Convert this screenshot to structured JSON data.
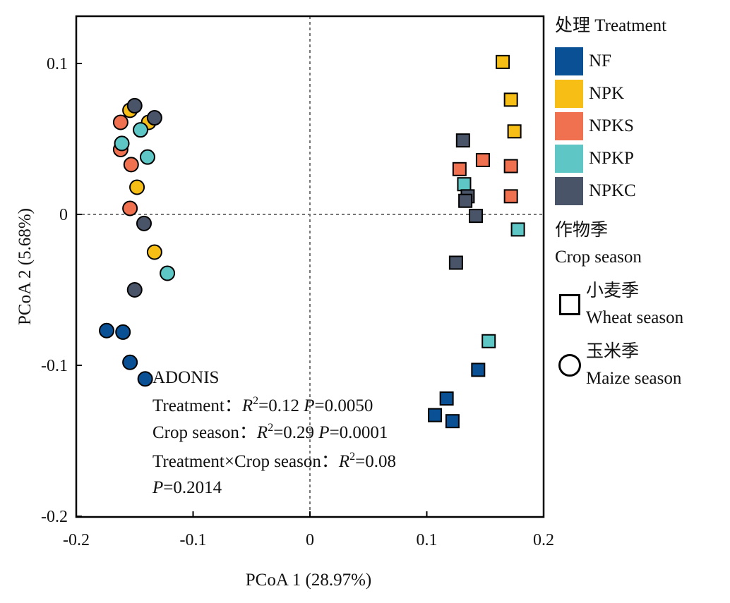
{
  "chart_data": {
    "type": "scatter",
    "xlabel": "PCoA 1 (28.97%)",
    "ylabel": "PCoA 2 (5.68%)",
    "xlim": [
      -0.2,
      0.2
    ],
    "ylim": [
      -0.2,
      0.13
    ],
    "x_ticks": [
      -0.2,
      -0.1,
      0,
      0.1,
      0.2
    ],
    "x_tick_labels": [
      "-0.2",
      "-0.1",
      "0",
      "0.1",
      "0.2"
    ],
    "y_ticks": [
      -0.2,
      -0.1,
      0,
      0.1
    ],
    "y_tick_labels": [
      "-0.2",
      "-0.1",
      "0",
      "0.1"
    ],
    "reference_lines": [
      "x=0 dotted",
      "y=0 dotted"
    ],
    "legend_position": "right",
    "treatments": [
      {
        "name": "NF",
        "color": "#0a5094"
      },
      {
        "name": "NPK",
        "color": "#f7be16"
      },
      {
        "name": "NPKS",
        "color": "#ef7150"
      },
      {
        "name": "NPKP",
        "color": "#5ec6c5"
      },
      {
        "name": "NPKC",
        "color": "#4a5468"
      }
    ],
    "points": [
      {
        "x": 0.165,
        "y": 0.101,
        "treatment": "NPK",
        "season": "wheat"
      },
      {
        "x": 0.172,
        "y": 0.076,
        "treatment": "NPK",
        "season": "wheat"
      },
      {
        "x": 0.175,
        "y": 0.055,
        "treatment": "NPK",
        "season": "wheat"
      },
      {
        "x": 0.131,
        "y": 0.049,
        "treatment": "NPKC",
        "season": "wheat"
      },
      {
        "x": 0.148,
        "y": 0.036,
        "treatment": "NPKS",
        "season": "wheat"
      },
      {
        "x": 0.128,
        "y": 0.03,
        "treatment": "NPKS",
        "season": "wheat"
      },
      {
        "x": 0.172,
        "y": 0.032,
        "treatment": "NPKS",
        "season": "wheat"
      },
      {
        "x": 0.132,
        "y": 0.02,
        "treatment": "NPKP",
        "season": "wheat"
      },
      {
        "x": 0.135,
        "y": 0.012,
        "treatment": "NPKC",
        "season": "wheat"
      },
      {
        "x": 0.172,
        "y": 0.012,
        "treatment": "NPKS",
        "season": "wheat"
      },
      {
        "x": 0.133,
        "y": 0.009,
        "treatment": "NPKC",
        "season": "wheat"
      },
      {
        "x": 0.142,
        "y": -0.001,
        "treatment": "NPKC",
        "season": "wheat"
      },
      {
        "x": 0.178,
        "y": -0.01,
        "treatment": "NPKP",
        "season": "wheat"
      },
      {
        "x": 0.125,
        "y": -0.032,
        "treatment": "NPKC",
        "season": "wheat"
      },
      {
        "x": 0.153,
        "y": -0.084,
        "treatment": "NPKP",
        "season": "wheat"
      },
      {
        "x": 0.144,
        "y": -0.103,
        "treatment": "NF",
        "season": "wheat"
      },
      {
        "x": 0.117,
        "y": -0.122,
        "treatment": "NF",
        "season": "wheat"
      },
      {
        "x": 0.107,
        "y": -0.133,
        "treatment": "NF",
        "season": "wheat"
      },
      {
        "x": 0.122,
        "y": -0.137,
        "treatment": "NF",
        "season": "wheat"
      },
      {
        "x": -0.154,
        "y": 0.069,
        "treatment": "NPK",
        "season": "maize"
      },
      {
        "x": -0.15,
        "y": 0.072,
        "treatment": "NPKC",
        "season": "maize"
      },
      {
        "x": -0.138,
        "y": 0.061,
        "treatment": "NPK",
        "season": "maize"
      },
      {
        "x": -0.133,
        "y": 0.064,
        "treatment": "NPKC",
        "season": "maize"
      },
      {
        "x": -0.162,
        "y": 0.061,
        "treatment": "NPKS",
        "season": "maize"
      },
      {
        "x": -0.145,
        "y": 0.056,
        "treatment": "NPKP",
        "season": "maize"
      },
      {
        "x": -0.162,
        "y": 0.043,
        "treatment": "NPKS",
        "season": "maize"
      },
      {
        "x": -0.161,
        "y": 0.047,
        "treatment": "NPKP",
        "season": "maize"
      },
      {
        "x": -0.139,
        "y": 0.038,
        "treatment": "NPKP",
        "season": "maize"
      },
      {
        "x": -0.153,
        "y": 0.033,
        "treatment": "NPKS",
        "season": "maize"
      },
      {
        "x": -0.148,
        "y": 0.018,
        "treatment": "NPK",
        "season": "maize"
      },
      {
        "x": -0.154,
        "y": 0.004,
        "treatment": "NPKS",
        "season": "maize"
      },
      {
        "x": -0.142,
        "y": -0.006,
        "treatment": "NPKC",
        "season": "maize"
      },
      {
        "x": -0.133,
        "y": -0.025,
        "treatment": "NPK",
        "season": "maize"
      },
      {
        "x": -0.122,
        "y": -0.039,
        "treatment": "NPKP",
        "season": "maize"
      },
      {
        "x": -0.15,
        "y": -0.05,
        "treatment": "NPKC",
        "season": "maize"
      },
      {
        "x": -0.174,
        "y": -0.077,
        "treatment": "NF",
        "season": "maize"
      },
      {
        "x": -0.16,
        "y": -0.078,
        "treatment": "NF",
        "season": "maize"
      },
      {
        "x": -0.154,
        "y": -0.098,
        "treatment": "NF",
        "season": "maize"
      },
      {
        "x": -0.141,
        "y": -0.109,
        "treatment": "NF",
        "season": "maize"
      }
    ],
    "annotations": {
      "heading": "ADONIS",
      "treatment_line": {
        "label": "Treatment：",
        "r2_sym": "R",
        "r2_sup": "2",
        "r2_val": "=0.12",
        "p_sym": "P",
        "p_val": "=0.0050"
      },
      "season_line": {
        "label": "Crop season：",
        "r2_sym": "R",
        "r2_sup": "2",
        "r2_val": "=0.29",
        "p_sym": "P",
        "p_val": "=0.0001"
      },
      "interaction_line": {
        "label": "Treatment×Crop season：",
        "r2_sym": "R",
        "r2_sup": "2",
        "r2_val": "=0.08"
      },
      "interaction_p": {
        "p_sym": "P",
        "p_val": "=0.2014"
      }
    }
  },
  "legend": {
    "title": "处理 Treatment",
    "items": [
      {
        "label": "NF",
        "color": "#0a5094"
      },
      {
        "label": "NPK",
        "color": "#f7be16"
      },
      {
        "label": "NPKS",
        "color": "#ef7150"
      },
      {
        "label": "NPKP",
        "color": "#5ec6c5"
      },
      {
        "label": "NPKC",
        "color": "#4a5468"
      }
    ],
    "season_title_cn": "作物季",
    "season_title_en": "Crop season",
    "wheat_cn": "小麦季",
    "wheat_en": "Wheat season",
    "maize_cn": "玉米季",
    "maize_en": "Maize season"
  }
}
